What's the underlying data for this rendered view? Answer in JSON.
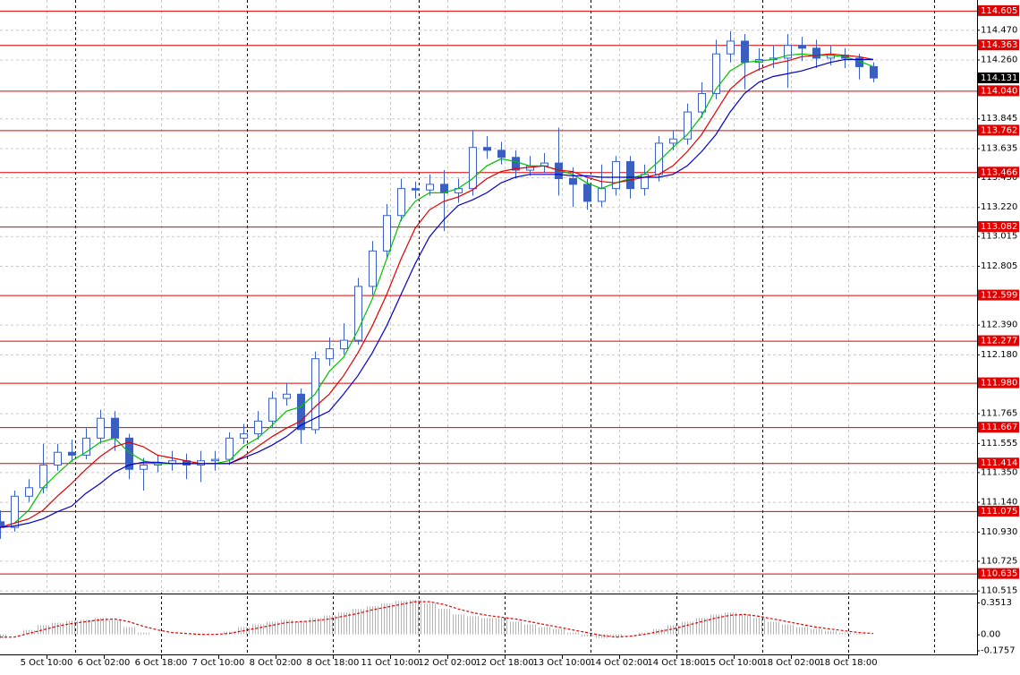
{
  "chart_data": [
    {
      "type": "candlestick",
      "categories": [
        null,
        null,
        null,
        null,
        null,
        null,
        null,
        null,
        null,
        null,
        null,
        null,
        null,
        null,
        null,
        null,
        null,
        null,
        null,
        null,
        null,
        null,
        null,
        null,
        null,
        null,
        null,
        null,
        null,
        null,
        null,
        null,
        null,
        null,
        null,
        null,
        null,
        null,
        null,
        null,
        null,
        null,
        null,
        null,
        null,
        null,
        null,
        null,
        null,
        null,
        null,
        null,
        null,
        null,
        null,
        null,
        null,
        null,
        null,
        null,
        null,
        null
      ],
      "open": [
        111.0,
        110.96,
        111.18,
        111.24,
        111.4,
        111.49,
        111.47,
        111.59,
        111.73,
        111.59,
        111.37,
        111.4,
        111.41,
        111.43,
        111.4,
        111.43,
        111.44,
        111.59,
        111.62,
        111.71,
        111.87,
        111.9,
        111.65,
        112.15,
        112.22,
        112.28,
        112.66,
        112.91,
        113.16,
        113.35,
        113.34,
        113.38,
        113.32,
        113.35,
        113.64,
        113.62,
        113.57,
        113.48,
        113.51,
        113.53,
        113.42,
        113.38,
        113.26,
        113.35,
        113.54,
        113.35,
        113.45,
        113.67,
        113.7,
        113.89,
        114.02,
        114.3,
        114.39,
        114.24,
        114.26,
        114.27,
        114.36,
        114.34,
        114.27,
        114.29,
        114.27,
        114.21
      ],
      "high": [
        111.08,
        111.22,
        111.3,
        111.55,
        111.55,
        111.58,
        111.66,
        111.79,
        111.78,
        111.62,
        111.45,
        111.47,
        111.5,
        111.48,
        111.5,
        111.5,
        111.63,
        111.69,
        111.78,
        111.92,
        111.98,
        111.94,
        112.2,
        112.3,
        112.4,
        112.72,
        112.98,
        113.24,
        113.42,
        113.4,
        113.45,
        113.48,
        113.42,
        113.76,
        113.72,
        113.68,
        113.62,
        113.58,
        113.6,
        113.78,
        113.5,
        113.42,
        113.52,
        113.58,
        113.58,
        113.52,
        113.72,
        113.76,
        113.95,
        114.1,
        114.4,
        114.46,
        114.44,
        114.34,
        114.36,
        114.44,
        114.42,
        114.4,
        114.36,
        114.34,
        114.3,
        114.24
      ],
      "low": [
        110.88,
        110.93,
        111.14,
        111.2,
        111.36,
        111.42,
        111.44,
        111.55,
        111.5,
        111.3,
        111.22,
        111.35,
        111.36,
        111.3,
        111.28,
        111.36,
        111.4,
        111.55,
        111.58,
        111.66,
        111.82,
        111.55,
        111.62,
        112.1,
        112.18,
        112.25,
        112.6,
        112.86,
        113.12,
        113.28,
        113.3,
        113.05,
        113.25,
        113.3,
        113.56,
        113.52,
        113.42,
        113.44,
        113.46,
        113.3,
        113.22,
        113.2,
        113.22,
        113.3,
        113.28,
        113.3,
        113.4,
        113.62,
        113.66,
        113.85,
        113.98,
        114.24,
        114.05,
        114.18,
        114.2,
        114.06,
        114.25,
        114.2,
        114.22,
        114.2,
        114.12,
        114.1
      ],
      "close": [
        110.96,
        111.18,
        111.24,
        111.4,
        111.49,
        111.47,
        111.59,
        111.73,
        111.59,
        111.37,
        111.4,
        111.41,
        111.43,
        111.4,
        111.43,
        111.44,
        111.59,
        111.62,
        111.71,
        111.87,
        111.9,
        111.65,
        112.15,
        112.22,
        112.28,
        112.66,
        112.91,
        113.16,
        113.35,
        113.34,
        113.38,
        113.32,
        113.35,
        113.64,
        113.62,
        113.57,
        113.48,
        113.51,
        113.53,
        113.42,
        113.38,
        113.26,
        113.35,
        113.54,
        113.35,
        113.45,
        113.67,
        113.7,
        113.89,
        114.02,
        114.3,
        114.39,
        114.24,
        114.26,
        114.27,
        114.36,
        114.34,
        114.27,
        114.29,
        114.27,
        114.21,
        114.13
      ],
      "color": "#3a5fc0",
      "series": [
        {
          "color": "#00c000",
          "values": [
            110.96,
            110.99,
            111.08,
            111.24,
            111.34,
            111.43,
            111.49,
            111.56,
            111.59,
            111.49,
            111.43,
            111.41,
            111.41,
            111.41,
            111.41,
            111.41,
            111.43,
            111.53,
            111.59,
            111.68,
            111.78,
            111.81,
            111.9,
            112.06,
            112.16,
            112.35,
            112.57,
            112.85,
            113.13,
            113.26,
            113.32,
            113.32,
            113.35,
            113.42,
            113.51,
            113.56,
            113.54,
            113.51,
            113.51,
            113.48,
            113.45,
            113.39,
            113.35,
            113.39,
            113.42,
            113.45,
            113.54,
            113.64,
            113.73,
            113.86,
            114.05,
            114.18,
            114.24,
            114.25,
            114.26,
            114.29,
            114.3,
            114.29,
            114.29,
            114.28,
            114.25,
            114.21
          ]
        },
        {
          "color": "#e00000",
          "values": [
            110.96,
            110.99,
            111.02,
            111.08,
            111.18,
            111.27,
            111.37,
            111.46,
            111.53,
            111.56,
            111.53,
            111.47,
            111.45,
            111.43,
            111.41,
            111.41,
            111.41,
            111.46,
            111.53,
            111.6,
            111.66,
            111.71,
            111.81,
            111.9,
            112.03,
            112.19,
            112.38,
            112.6,
            112.85,
            113.07,
            113.2,
            113.26,
            113.29,
            113.34,
            113.42,
            113.47,
            113.49,
            113.5,
            113.51,
            113.48,
            113.47,
            113.43,
            113.4,
            113.39,
            113.41,
            113.43,
            113.45,
            113.51,
            113.61,
            113.73,
            113.89,
            114.05,
            114.14,
            114.19,
            114.23,
            114.25,
            114.28,
            114.29,
            114.3,
            114.29,
            114.28,
            114.26
          ]
        },
        {
          "color": "#0000c8",
          "values": [
            110.96,
            110.97,
            110.99,
            111.02,
            111.07,
            111.11,
            111.2,
            111.27,
            111.35,
            111.4,
            111.42,
            111.42,
            111.41,
            111.41,
            111.41,
            111.41,
            111.41,
            111.45,
            111.49,
            111.54,
            111.6,
            111.68,
            111.73,
            111.78,
            111.9,
            112.03,
            112.19,
            112.38,
            112.6,
            112.82,
            113.01,
            113.13,
            113.23,
            113.27,
            113.32,
            113.39,
            113.43,
            113.45,
            113.45,
            113.45,
            113.44,
            113.44,
            113.43,
            113.43,
            113.43,
            113.43,
            113.43,
            113.45,
            113.51,
            113.61,
            113.73,
            113.89,
            114.02,
            114.1,
            114.14,
            114.16,
            114.18,
            114.21,
            114.24,
            114.26,
            114.26,
            114.26
          ]
        }
      ],
      "levels": [
        114.605,
        114.363,
        {
          "value": 114.04,
          "label": "114.040"
        },
        113.762,
        113.466,
        113.082,
        112.599,
        112.277,
        {
          "value": 111.98,
          "label": "111.980"
        },
        111.667,
        111.414,
        111.075,
        110.635
      ],
      "level_color": "#e00000",
      "current_price": 114.131,
      "ylim": [
        110.5,
        114.68
      ],
      "yticks": [
        {
          "value": 114.47,
          "label": "114.470"
        },
        {
          "value": 114.26,
          "label": "114.260"
        },
        113.845,
        113.635,
        {
          "value": 113.43,
          "label": "113.430"
        },
        {
          "value": 113.22,
          "label": "113.220"
        },
        113.015,
        112.805,
        {
          "value": 112.39,
          "label": "112.390"
        },
        {
          "value": 112.18,
          "label": "112.180"
        },
        111.765,
        111.555,
        {
          "value": 111.35,
          "label": "111.350"
        },
        {
          "value": 111.14,
          "label": "111.140"
        },
        {
          "value": 110.93,
          "label": "110.930"
        },
        110.725,
        110.515
      ],
      "xlim": [
        0,
        68.25
      ],
      "xticks": [
        {
          "value": 3.25,
          "label": "5 Oct 10:00"
        },
        {
          "value": 7.25,
          "label": "6 Oct 02:00"
        },
        {
          "value": 11.25,
          "label": "6 Oct 18:00"
        },
        {
          "value": 15.25,
          "label": "7 Oct 10:00"
        },
        {
          "value": 19.25,
          "label": "8 Oct 02:00"
        },
        {
          "value": 23.25,
          "label": "8 Oct 18:00"
        },
        {
          "value": 27.25,
          "label": "11 Oct 10:00"
        },
        {
          "value": 31.25,
          "label": "12 Oct 02:00"
        },
        {
          "value": 35.25,
          "label": "12 Oct 18:00"
        },
        {
          "value": 39.25,
          "label": "13 Oct 10:00"
        },
        {
          "value": 43.25,
          "label": "14 Oct 02:00"
        },
        {
          "value": 47.25,
          "label": "14 Oct 18:00"
        },
        {
          "value": 51.25,
          "label": "15 Oct 10:00"
        },
        {
          "value": 55.25,
          "label": "18 Oct 02:00"
        },
        {
          "value": 59.25,
          "label": "18 Oct 18:00"
        }
      ],
      "grid": true
    },
    {
      "type": "bar",
      "categories": [
        null,
        null,
        null,
        null,
        null,
        null,
        null,
        null,
        null,
        null,
        null,
        null,
        null,
        null,
        null,
        null,
        null,
        null,
        null,
        null,
        null,
        null,
        null,
        null,
        null,
        null,
        null,
        null,
        null,
        null,
        null,
        null,
        null,
        null,
        null,
        null,
        null,
        null,
        null,
        null,
        null,
        null,
        null,
        null,
        null,
        null,
        null,
        null,
        null,
        null,
        null,
        null,
        null,
        null,
        null,
        null,
        null,
        null,
        null,
        null,
        null,
        null
      ],
      "values": [
        -0.04,
        0,
        0.05,
        0.1,
        0.13,
        0.15,
        0.16,
        0.18,
        0.16,
        0.08,
        0.02,
        0,
        0,
        0,
        0,
        0,
        0.03,
        0.08,
        0.11,
        0.14,
        0.16,
        0.14,
        0.18,
        0.21,
        0.24,
        0.28,
        0.31,
        0.34,
        0.37,
        0.38,
        0.34,
        0.28,
        0.22,
        0.2,
        0.18,
        0.18,
        0.14,
        0.11,
        0.08,
        0.06,
        0.02,
        -0.02,
        -0.04,
        -0.03,
        0,
        0.02,
        0.06,
        0.1,
        0.14,
        0.18,
        0.22,
        0.24,
        0.22,
        0.18,
        0.14,
        0.11,
        0.08,
        0.06,
        0.04,
        0.02,
        0.01,
        0
      ],
      "color": "#b4b4b4",
      "series": [
        {
          "color": "#e00000",
          "values": [
            -0.03,
            -0.03,
            0.01,
            0.05,
            0.09,
            0.12,
            0.14,
            0.16,
            0.17,
            0.14,
            0.09,
            0.05,
            0.02,
            0.01,
            0,
            0,
            0.01,
            0.04,
            0.07,
            0.1,
            0.13,
            0.14,
            0.15,
            0.17,
            0.2,
            0.23,
            0.27,
            0.3,
            0.33,
            0.36,
            0.36,
            0.33,
            0.28,
            0.24,
            0.21,
            0.19,
            0.17,
            0.14,
            0.11,
            0.08,
            0.05,
            0.02,
            -0.01,
            -0.03,
            -0.02,
            0,
            0.03,
            0.06,
            0.1,
            0.14,
            0.18,
            0.21,
            0.22,
            0.2,
            0.17,
            0.14,
            0.11,
            0.08,
            0.06,
            0.04,
            0.02,
            0.01
          ]
        }
      ],
      "ylim": [
        -0.22,
        0.43
      ],
      "yticks": [
        0.3513,
        {
          "value": 0,
          "label": "0.00"
        },
        -0.1757
      ],
      "xlim": [
        0,
        68.25
      ]
    }
  ]
}
